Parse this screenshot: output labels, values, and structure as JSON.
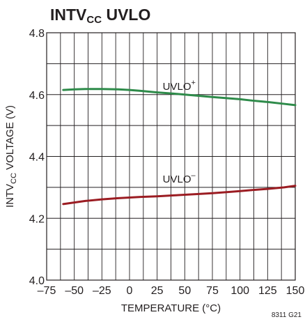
{
  "title": {
    "main": "INTV",
    "sub": "CC",
    "tail": " UVLO"
  },
  "figure_id": "8311 G21",
  "chart_data": {
    "type": "line",
    "xlabel": "TEMPERATURE (°C)",
    "ylabel": {
      "main": "INTV",
      "sub": "CC",
      "tail": " VOLTAGE (V)"
    },
    "xlim": [
      -75,
      150
    ],
    "ylim": [
      4.0,
      4.8
    ],
    "xticks": [
      -75,
      -50,
      -25,
      0,
      25,
      50,
      75,
      100,
      125,
      150
    ],
    "xtick_labels": [
      "–75",
      "–50",
      "–25",
      "0",
      "25",
      "50",
      "75",
      "100",
      "125",
      "150"
    ],
    "yticks": [
      4.0,
      4.2,
      4.4,
      4.6,
      4.8
    ],
    "ytick_labels": [
      "4.0",
      "4.2",
      "4.4",
      "4.6",
      "4.8"
    ],
    "grid": true,
    "series": [
      {
        "name": "UVLO+",
        "label_main": "UVLO",
        "label_sup": "+",
        "label_at": [
          25,
          4.615
        ],
        "color": "#2e8b4a",
        "x": [
          -60,
          -50,
          -40,
          -25,
          -10,
          0,
          10,
          25,
          40,
          50,
          60,
          75,
          90,
          100,
          110,
          125,
          140,
          150
        ],
        "y": [
          4.615,
          4.617,
          4.618,
          4.618,
          4.617,
          4.615,
          4.612,
          4.607,
          4.603,
          4.6,
          4.597,
          4.592,
          4.588,
          4.585,
          4.581,
          4.576,
          4.57,
          4.566
        ]
      },
      {
        "name": "UVLO-",
        "label_main": "UVLO",
        "label_sup": "–",
        "label_at": [
          25,
          4.315
        ],
        "color": "#9b1c22",
        "x": [
          -60,
          -50,
          -40,
          -25,
          -10,
          0,
          10,
          25,
          40,
          50,
          60,
          75,
          90,
          100,
          110,
          125,
          140,
          150
        ],
        "y": [
          4.246,
          4.251,
          4.256,
          4.261,
          4.265,
          4.267,
          4.269,
          4.271,
          4.274,
          4.276,
          4.278,
          4.281,
          4.285,
          4.288,
          4.291,
          4.295,
          4.3,
          4.305
        ]
      }
    ]
  }
}
